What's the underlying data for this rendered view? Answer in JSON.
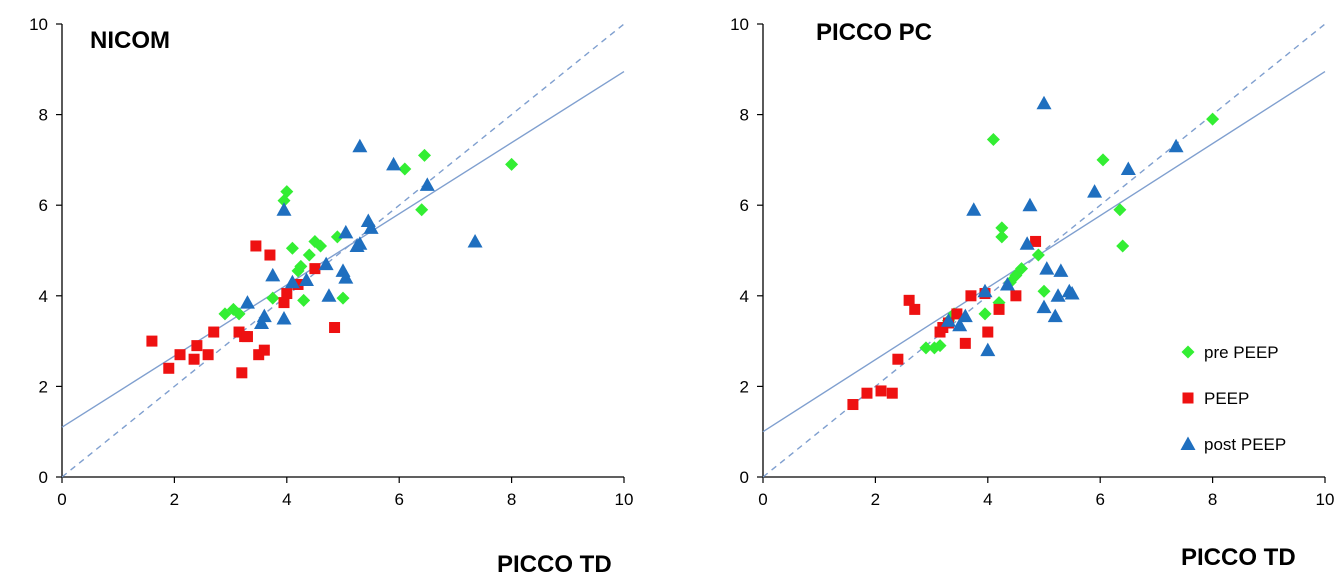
{
  "colors": {
    "pre_peep": "#33ee33",
    "peep": "#ee1111",
    "post_peep": "#1f6fbf",
    "fit": "#7f9fcf",
    "axis": "#000000"
  },
  "chart_data": [
    {
      "type": "scatter",
      "title": "NICOM",
      "xlabel": "PICCO TD",
      "ylabel": "",
      "xlim": [
        0,
        10
      ],
      "ylim": [
        0,
        10
      ],
      "xticks": [
        "0",
        "2",
        "4",
        "6",
        "8",
        "10"
      ],
      "yticks": [
        "0",
        "2",
        "4",
        "6",
        "8",
        "10"
      ],
      "grid": false,
      "series": [
        {
          "marker": "diamond",
          "color": "#33ee33",
          "points": [
            [
              2.9,
              3.6
            ],
            [
              3.05,
              3.7
            ],
            [
              3.15,
              3.6
            ],
            [
              3.75,
              3.95
            ],
            [
              3.95,
              6.1
            ],
            [
              4.0,
              6.3
            ],
            [
              4.1,
              5.05
            ],
            [
              4.2,
              4.55
            ],
            [
              4.25,
              4.65
            ],
            [
              4.3,
              3.9
            ],
            [
              4.4,
              4.9
            ],
            [
              4.5,
              5.2
            ],
            [
              4.6,
              5.1
            ],
            [
              4.9,
              5.3
            ],
            [
              5.0,
              3.95
            ],
            [
              6.1,
              6.8
            ],
            [
              6.4,
              5.9
            ],
            [
              6.45,
              7.1
            ],
            [
              8.0,
              6.9
            ]
          ]
        },
        {
          "marker": "square",
          "color": "#ee1111",
          "points": [
            [
              1.6,
              3.0
            ],
            [
              1.9,
              2.4
            ],
            [
              2.1,
              2.7
            ],
            [
              2.35,
              2.6
            ],
            [
              2.4,
              2.9
            ],
            [
              2.6,
              2.7
            ],
            [
              2.7,
              3.2
            ],
            [
              3.15,
              3.2
            ],
            [
              3.2,
              2.3
            ],
            [
              3.25,
              3.1
            ],
            [
              3.3,
              3.1
            ],
            [
              3.45,
              5.1
            ],
            [
              3.5,
              2.7
            ],
            [
              3.6,
              2.8
            ],
            [
              3.7,
              4.9
            ],
            [
              3.95,
              3.85
            ],
            [
              4.0,
              4.05
            ],
            [
              4.2,
              4.25
            ],
            [
              4.5,
              4.6
            ],
            [
              4.85,
              3.3
            ]
          ]
        },
        {
          "marker": "triangle",
          "color": "#1f6fbf",
          "points": [
            [
              3.3,
              3.85
            ],
            [
              3.55,
              3.4
            ],
            [
              3.6,
              3.55
            ],
            [
              3.75,
              4.45
            ],
            [
              3.95,
              5.9
            ],
            [
              3.95,
              3.5
            ],
            [
              4.1,
              4.3
            ],
            [
              4.35,
              4.35
            ],
            [
              4.7,
              4.7
            ],
            [
              4.75,
              4.0
            ],
            [
              5.0,
              4.55
            ],
            [
              5.05,
              4.4
            ],
            [
              5.05,
              5.4
            ],
            [
              5.25,
              5.1
            ],
            [
              5.3,
              5.15
            ],
            [
              5.3,
              7.3
            ],
            [
              5.45,
              5.65
            ],
            [
              5.5,
              5.5
            ],
            [
              5.9,
              6.9
            ],
            [
              6.5,
              6.45
            ],
            [
              7.35,
              5.2
            ]
          ]
        }
      ],
      "fit_lines": [
        {
          "style": "solid",
          "from": [
            0,
            1.1
          ],
          "to": [
            10,
            8.95
          ]
        },
        {
          "style": "dashed",
          "from": [
            0,
            0
          ],
          "to": [
            10,
            10
          ]
        }
      ]
    },
    {
      "type": "scatter",
      "title": "PICCO PC",
      "xlabel": "PICCO TD",
      "ylabel": "",
      "xlim": [
        0,
        10
      ],
      "ylim": [
        0,
        10
      ],
      "xticks": [
        "0",
        "2",
        "4",
        "6",
        "8",
        "10"
      ],
      "yticks": [
        "0",
        "2",
        "4",
        "6",
        "8",
        "10"
      ],
      "grid": false,
      "legend_position": "bottom-right",
      "series": [
        {
          "name": "pre PEEP",
          "marker": "diamond",
          "color": "#33ee33",
          "points": [
            [
              2.9,
              2.85
            ],
            [
              3.05,
              2.85
            ],
            [
              3.15,
              2.9
            ],
            [
              3.3,
              3.45
            ],
            [
              3.4,
              3.6
            ],
            [
              3.95,
              3.6
            ],
            [
              4.1,
              7.45
            ],
            [
              4.2,
              3.85
            ],
            [
              4.25,
              5.5
            ],
            [
              4.25,
              5.3
            ],
            [
              4.4,
              4.3
            ],
            [
              4.5,
              4.45
            ],
            [
              4.6,
              4.6
            ],
            [
              4.9,
              4.9
            ],
            [
              5.0,
              4.1
            ],
            [
              6.05,
              7.0
            ],
            [
              6.35,
              5.9
            ],
            [
              6.4,
              5.1
            ],
            [
              8.0,
              7.9
            ]
          ]
        },
        {
          "name": "PEEP",
          "marker": "square",
          "color": "#ee1111",
          "points": [
            [
              1.6,
              1.6
            ],
            [
              1.85,
              1.85
            ],
            [
              2.1,
              1.9
            ],
            [
              2.3,
              1.85
            ],
            [
              2.4,
              2.6
            ],
            [
              2.6,
              3.9
            ],
            [
              2.7,
              3.7
            ],
            [
              3.15,
              3.2
            ],
            [
              3.2,
              3.3
            ],
            [
              3.3,
              3.4
            ],
            [
              3.45,
              3.6
            ],
            [
              3.6,
              2.95
            ],
            [
              3.7,
              4.0
            ],
            [
              3.95,
              4.05
            ],
            [
              4.0,
              3.2
            ],
            [
              4.2,
              3.7
            ],
            [
              4.5,
              4.0
            ],
            [
              4.85,
              5.2
            ]
          ]
        },
        {
          "name": "post PEEP",
          "marker": "triangle",
          "color": "#1f6fbf",
          "points": [
            [
              3.3,
              3.45
            ],
            [
              3.5,
              3.35
            ],
            [
              3.6,
              3.55
            ],
            [
              3.75,
              5.9
            ],
            [
              3.95,
              4.1
            ],
            [
              4.0,
              2.8
            ],
            [
              4.35,
              4.25
            ],
            [
              4.7,
              5.15
            ],
            [
              4.75,
              6.0
            ],
            [
              5.0,
              8.25
            ],
            [
              5.0,
              3.75
            ],
            [
              5.05,
              4.6
            ],
            [
              5.2,
              3.55
            ],
            [
              5.25,
              4.0
            ],
            [
              5.3,
              4.55
            ],
            [
              5.45,
              4.1
            ],
            [
              5.5,
              4.05
            ],
            [
              5.9,
              6.3
            ],
            [
              6.5,
              6.8
            ],
            [
              7.35,
              7.3
            ]
          ]
        }
      ],
      "fit_lines": [
        {
          "style": "solid",
          "from": [
            0,
            1.0
          ],
          "to": [
            10,
            8.95
          ]
        },
        {
          "style": "dashed",
          "from": [
            0,
            0
          ],
          "to": [
            10,
            10
          ]
        }
      ]
    }
  ]
}
